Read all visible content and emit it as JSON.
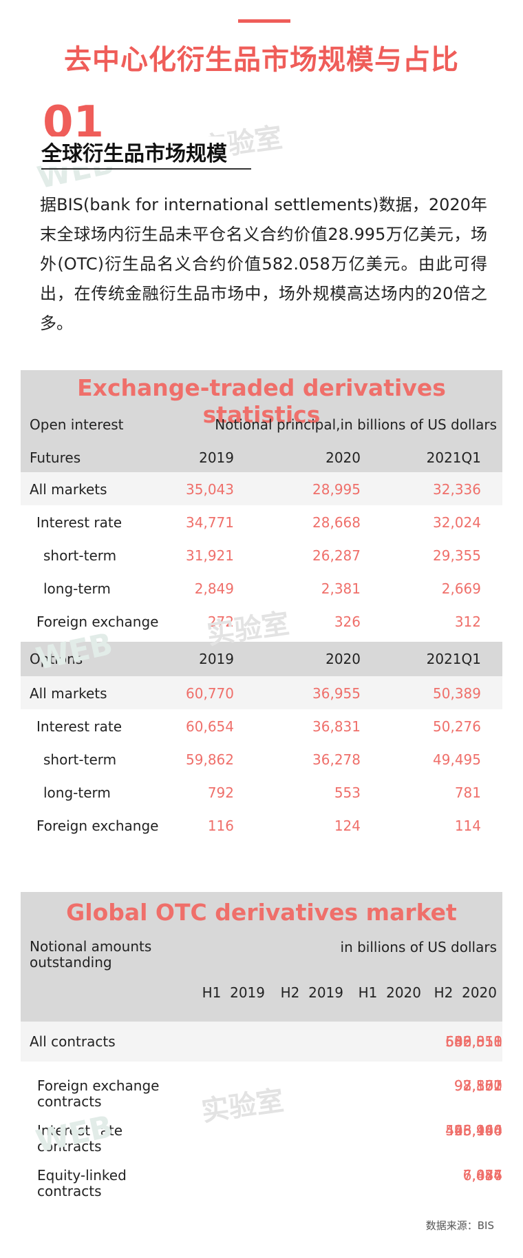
{
  "title": "去中心化衍生品市场规模与占比",
  "section": {
    "number": "01",
    "title": "全球衍生品市场规模",
    "paragraph": "据BIS(bank for international settlements)数据，2020年末全球场内衍生品未平仓名义合约价值28.995万亿美元，场外(OTC)衍生品名义合约价值582.058万亿美元。由此可得出，在传统金融衍生品市场中，场外规模高达场内的20倍之多。"
  },
  "watermark": {
    "en": "WEB",
    "cn": "实验室"
  },
  "colors": {
    "accent": "#ef5d59",
    "panel_bg": "#d8d8d8"
  },
  "etd": {
    "title": "Exchange-traded derivatives statistics",
    "header_left": "Open interest",
    "header_right": "Notional principal,in billions of US dollars",
    "futures": {
      "label": "Futures",
      "cols": [
        "2019",
        "2020",
        "2021Q1"
      ],
      "rows": [
        {
          "label": "All markets",
          "values": [
            "35,043",
            "28,995",
            "32,336"
          ]
        },
        {
          "label": "Interest rate",
          "values": [
            "34,771",
            "28,668",
            "32,024"
          ]
        },
        {
          "label": "short-term",
          "values": [
            "31,921",
            "26,287",
            "29,355"
          ]
        },
        {
          "label": "long-term",
          "values": [
            "2,849",
            "2,381",
            "2,669"
          ]
        },
        {
          "label": "Foreign exchange",
          "values": [
            "272",
            "326",
            "312"
          ]
        }
      ]
    },
    "options": {
      "label": "Options",
      "cols": [
        "2019",
        "2020",
        "2021Q1"
      ],
      "rows": [
        {
          "label": "All markets",
          "values": [
            "60,770",
            "36,955",
            "50,389"
          ]
        },
        {
          "label": "Interest rate",
          "values": [
            "60,654",
            "36,831",
            "50,276"
          ]
        },
        {
          "label": "short-term",
          "values": [
            "59,862",
            "36,278",
            "49,495"
          ]
        },
        {
          "label": "long-term",
          "values": [
            "792",
            "553",
            "781"
          ]
        },
        {
          "label": "Foreign exchange",
          "values": [
            "116",
            "124",
            "114"
          ]
        }
      ]
    }
  },
  "otc": {
    "title": "Global OTC derivatives market",
    "header_left_1": "Notional amounts",
    "header_left_2": "outstanding",
    "header_right": "in billions of US dollars",
    "cols": [
      "H1  2019",
      "H2  2019",
      "H1  2020",
      "H2  2020"
    ],
    "rows": [
      {
        "label1": "All contracts",
        "label2": "",
        "values": [
          "640,351",
          "558,511",
          "606,810",
          "582,058"
        ]
      },
      {
        "label1": "Foreign exchange",
        "label2": "contracts",
        "values": [
          "98,560",
          "92,177",
          "93,801",
          "97,552"
        ]
      },
      {
        "label1": "Interest rate",
        "label2": "contracts",
        "values": [
          "523,960",
          "448,966",
          "495,140",
          "466,494"
        ]
      },
      {
        "label1": "Equity-linked",
        "label2": "contracts",
        "values": [
          "7,046",
          "6,874",
          "6,457",
          "7,084"
        ]
      }
    ]
  },
  "source": "数据来源：BIS"
}
